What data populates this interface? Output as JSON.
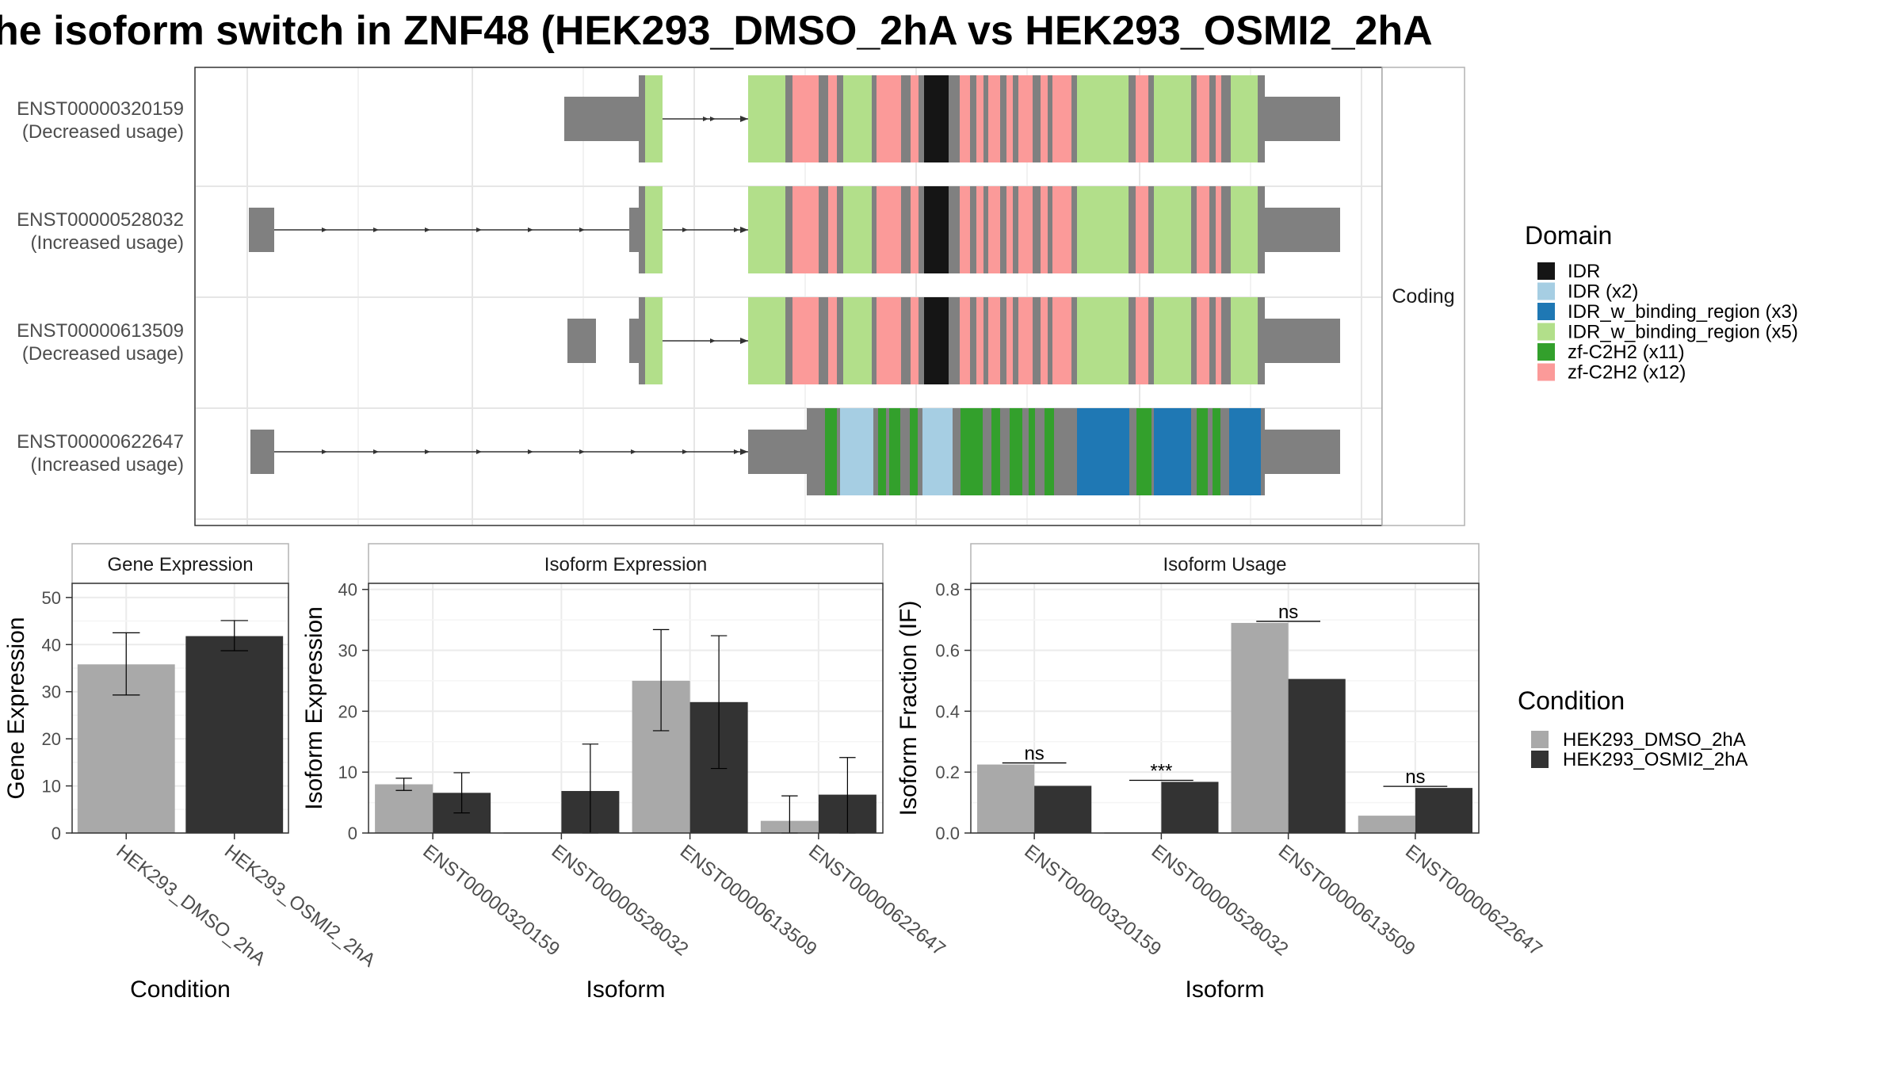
{
  "title": "he isoform switch in ZNF48 (HEK293_DMSO_2hA vs HEK293_OSMI2_2hA",
  "colors": {
    "dmso": "#a9a9a9",
    "osmi": "#333333",
    "exon": "#808080",
    "domain_idr": "#151515",
    "domain_idr_x2": "#a6cee3",
    "domain_binding_x3": "#1f78b4",
    "domain_binding_x5": "#b2df8a",
    "domain_zf_x11": "#33a02c",
    "domain_zf_x12": "#fb9a99"
  },
  "chart_data": [
    {
      "type": "gene-structure",
      "facet_label": "Coding",
      "transcripts": [
        {
          "id": "ENST00000320159",
          "usage": "(Decreased usage)"
        },
        {
          "id": "ENST00000528032",
          "usage": "(Increased usage)"
        },
        {
          "id": "ENST00000613509",
          "usage": "(Decreased usage)"
        },
        {
          "id": "ENST00000622647",
          "usage": "(Increased usage)"
        }
      ],
      "legend": {
        "title": "Domain",
        "items": [
          {
            "label": "IDR",
            "color": "#151515"
          },
          {
            "label": "IDR (x2)",
            "color": "#a6cee3"
          },
          {
            "label": "IDR_w_binding_region (x3)",
            "color": "#1f78b4"
          },
          {
            "label": "IDR_w_binding_region (x5)",
            "color": "#b2df8a"
          },
          {
            "label": "zf-C2H2 (x11)",
            "color": "#33a02c"
          },
          {
            "label": "zf-C2H2 (x12)",
            "color": "#fb9a99"
          }
        ]
      }
    },
    {
      "type": "bar",
      "title": "Gene Expression",
      "xlabel": "Condition",
      "ylabel": "Gene Expression",
      "ylim": [
        0,
        53
      ],
      "yticks": [
        0,
        10,
        20,
        30,
        40,
        50
      ],
      "categories": [
        "HEK293_DMSO_2hA",
        "HEK293_OSMI2_2hA"
      ],
      "values": [
        35.8,
        41.8
      ],
      "error_low": [
        29.3,
        38.7
      ],
      "error_high": [
        42.5,
        45.1
      ]
    },
    {
      "type": "bar",
      "title": "Isoform Expression",
      "xlabel": "Isoform",
      "ylabel": "Isoform Expression",
      "ylim": [
        0,
        41
      ],
      "yticks": [
        0,
        10,
        20,
        30,
        40
      ],
      "categories": [
        "ENST00000320159",
        "ENST00000528032",
        "ENST00000613509",
        "ENST00000622647"
      ],
      "series": [
        {
          "name": "HEK293_DMSO_2hA",
          "values": [
            8.0,
            0.0,
            25.0,
            2.0
          ],
          "error_low": [
            7.0,
            0.0,
            16.8,
            0.0
          ],
          "error_high": [
            9.0,
            0.0,
            33.4,
            6.1
          ]
        },
        {
          "name": "HEK293_OSMI2_2hA",
          "values": [
            6.6,
            6.9,
            21.5,
            6.3
          ],
          "error_low": [
            3.3,
            0.0,
            10.6,
            0.0
          ],
          "error_high": [
            9.9,
            14.6,
            32.4,
            12.4
          ]
        }
      ]
    },
    {
      "type": "bar",
      "title": "Isoform Usage",
      "xlabel": "Isoform",
      "ylabel": "Isoform Fraction (IF)",
      "ylim": [
        0,
        0.82
      ],
      "yticks": [
        "0.0",
        "0.2",
        "0.4",
        "0.6",
        "0.8"
      ],
      "categories": [
        "ENST00000320159",
        "ENST00000528032",
        "ENST00000613509",
        "ENST00000622647"
      ],
      "series": [
        {
          "name": "HEK293_DMSO_2hA",
          "values": [
            0.225,
            0.0,
            0.69,
            0.057
          ]
        },
        {
          "name": "HEK293_OSMI2_2hA",
          "values": [
            0.155,
            0.168,
            0.506,
            0.148
          ]
        }
      ],
      "significance": [
        "ns",
        "***",
        "ns",
        "ns"
      ]
    }
  ],
  "condition_legend": {
    "title": "Condition",
    "items": [
      {
        "label": "HEK293_DMSO_2hA",
        "color": "#a9a9a9"
      },
      {
        "label": "HEK293_OSMI2_2hA",
        "color": "#333333"
      }
    ]
  }
}
